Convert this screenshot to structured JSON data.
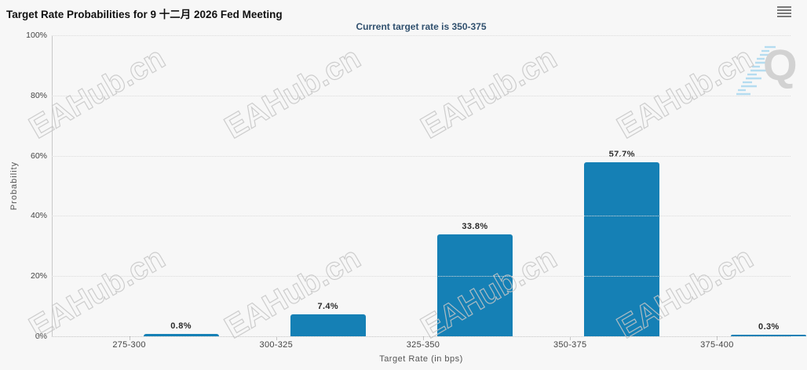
{
  "header": {
    "title": "Target Rate Probabilities for 9 十二月 2026 Fed Meeting",
    "subtitle": "Current target rate is 350-375"
  },
  "menu": {
    "icon": "hamburger-menu-icon"
  },
  "watermark": {
    "text": "EAHub.cn",
    "logo_letter": "Q"
  },
  "colors": {
    "bar": "#1580b5",
    "subtitle_text": "#30506e",
    "background": "#f7f7f7",
    "gridline": "#dbdbdb",
    "watermark_outline": "#c6c6c6"
  },
  "chart_data": {
    "type": "bar",
    "title": "Target Rate Probabilities for 9 十二月 2026 Fed Meeting",
    "subtitle": "Current target rate is 350-375",
    "categories": [
      "275-300",
      "300-325",
      "325-350",
      "350-375",
      "375-400"
    ],
    "values": [
      0.8,
      7.4,
      33.8,
      57.7,
      0.3
    ],
    "data_labels": [
      "0.8%",
      "7.4%",
      "33.8%",
      "57.7%",
      "0.3%"
    ],
    "xlabel": "Target Rate (in bps)",
    "ylabel": "Probability",
    "ylim": [
      0,
      100
    ],
    "yticks": [
      0,
      20,
      40,
      60,
      80,
      100
    ],
    "ytick_labels": [
      "0%",
      "20%",
      "40%",
      "60%",
      "80%",
      "100%"
    ],
    "grid": "horizontal-dotted",
    "legend": "none",
    "bar_color": "#1580b5"
  }
}
